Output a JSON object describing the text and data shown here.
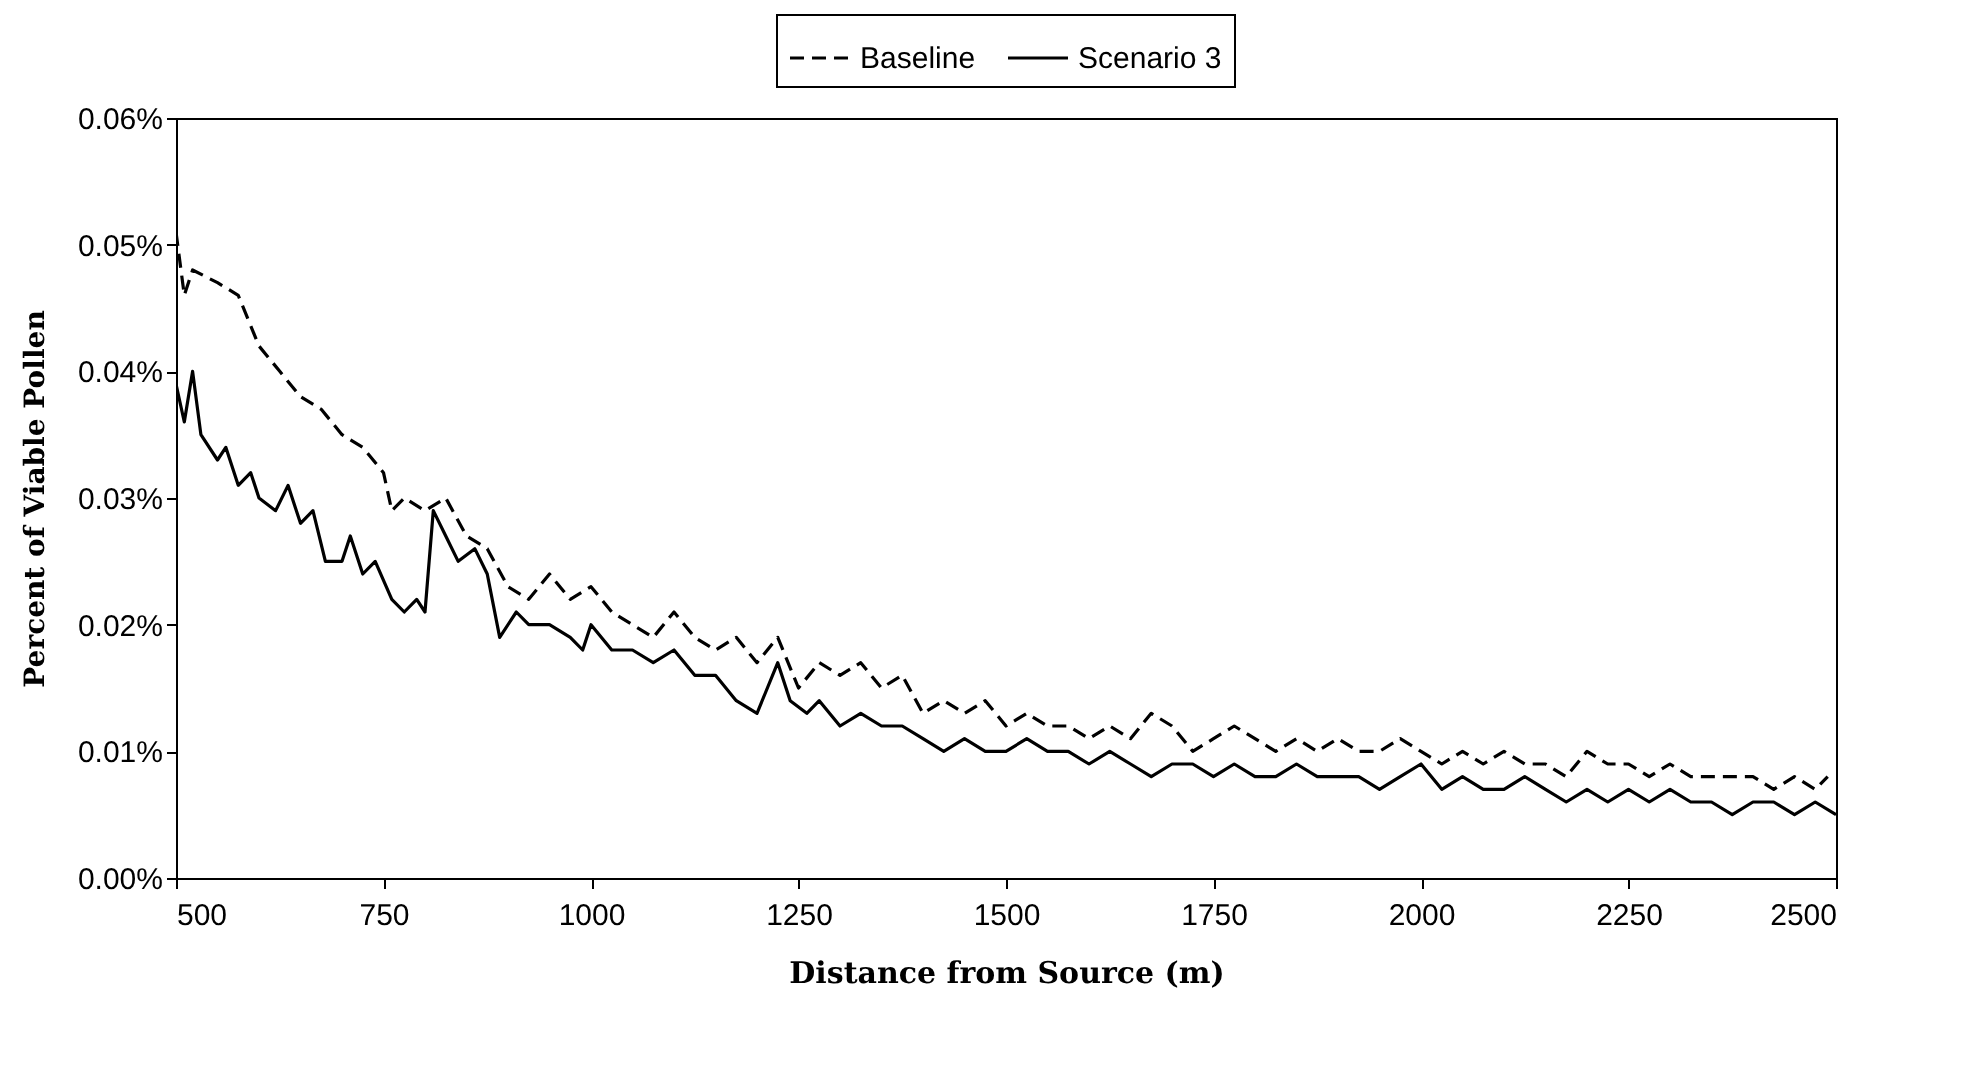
{
  "chart_data": {
    "type": "line",
    "xlabel": "Distance from Source (m)",
    "ylabel": "Percent of Viable Pollen",
    "xlim": [
      500,
      2500
    ],
    "xticks": [
      500,
      750,
      1000,
      1250,
      1500,
      1750,
      2000,
      2250,
      2500
    ],
    "ylim": [
      0,
      0.06
    ],
    "yticks": [
      {
        "value": 0,
        "label": "0.00%"
      },
      {
        "value": 0.01,
        "label": "0.01%"
      },
      {
        "value": 0.02,
        "label": "0.02%"
      },
      {
        "value": 0.03,
        "label": "0.03%"
      },
      {
        "value": 0.04,
        "label": "0.04%"
      },
      {
        "value": 0.05,
        "label": "0.05%"
      },
      {
        "value": 0.06,
        "label": "0.06%"
      }
    ],
    "grid": false,
    "legend": "top",
    "marker": "none",
    "series": [
      {
        "name": "Baseline",
        "color": "#000000",
        "line_style": "dashed",
        "x": [
          500,
          510,
          520,
          550,
          575,
          600,
          625,
          650,
          675,
          700,
          725,
          750,
          760,
          775,
          800,
          825,
          850,
          875,
          900,
          925,
          950,
          975,
          1000,
          1025,
          1050,
          1075,
          1100,
          1125,
          1150,
          1175,
          1200,
          1225,
          1250,
          1275,
          1300,
          1325,
          1350,
          1375,
          1400,
          1425,
          1450,
          1475,
          1500,
          1525,
          1550,
          1575,
          1600,
          1625,
          1650,
          1675,
          1700,
          1725,
          1750,
          1775,
          1800,
          1825,
          1850,
          1875,
          1900,
          1925,
          1950,
          1975,
          2000,
          2025,
          2050,
          2075,
          2100,
          2125,
          2150,
          2175,
          2200,
          2225,
          2250,
          2275,
          2300,
          2325,
          2350,
          2375,
          2400,
          2425,
          2450,
          2475,
          2490
        ],
        "values": [
          0.051,
          0.046,
          0.048,
          0.047,
          0.046,
          0.042,
          0.04,
          0.038,
          0.037,
          0.035,
          0.034,
          0.032,
          0.029,
          0.03,
          0.029,
          0.03,
          0.027,
          0.026,
          0.023,
          0.022,
          0.024,
          0.022,
          0.023,
          0.021,
          0.02,
          0.019,
          0.021,
          0.019,
          0.018,
          0.019,
          0.017,
          0.019,
          0.015,
          0.017,
          0.016,
          0.017,
          0.015,
          0.016,
          0.013,
          0.014,
          0.013,
          0.014,
          0.012,
          0.013,
          0.012,
          0.012,
          0.011,
          0.012,
          0.011,
          0.013,
          0.012,
          0.01,
          0.011,
          0.012,
          0.011,
          0.01,
          0.011,
          0.01,
          0.011,
          0.01,
          0.01,
          0.011,
          0.01,
          0.009,
          0.01,
          0.009,
          0.01,
          0.009,
          0.009,
          0.008,
          0.01,
          0.009,
          0.009,
          0.008,
          0.009,
          0.008,
          0.008,
          0.008,
          0.008,
          0.007,
          0.008,
          0.007,
          0.008
        ]
      },
      {
        "name": "Scenario 3",
        "color": "#000000",
        "line_style": "solid",
        "x": [
          500,
          510,
          520,
          530,
          550,
          560,
          575,
          590,
          600,
          620,
          635,
          650,
          665,
          680,
          700,
          710,
          725,
          740,
          760,
          775,
          790,
          800,
          810,
          825,
          840,
          860,
          875,
          890,
          910,
          925,
          950,
          975,
          990,
          1000,
          1025,
          1050,
          1075,
          1100,
          1125,
          1150,
          1175,
          1200,
          1225,
          1240,
          1260,
          1275,
          1300,
          1325,
          1350,
          1375,
          1400,
          1425,
          1450,
          1475,
          1500,
          1525,
          1550,
          1575,
          1600,
          1625,
          1650,
          1675,
          1700,
          1725,
          1750,
          1775,
          1800,
          1825,
          1850,
          1875,
          1900,
          1925,
          1950,
          1975,
          2000,
          2025,
          2050,
          2075,
          2100,
          2125,
          2150,
          2175,
          2200,
          2225,
          2250,
          2275,
          2300,
          2325,
          2350,
          2375,
          2400,
          2425,
          2450,
          2475,
          2500
        ],
        "values": [
          0.039,
          0.036,
          0.04,
          0.035,
          0.033,
          0.034,
          0.031,
          0.032,
          0.03,
          0.029,
          0.031,
          0.028,
          0.029,
          0.025,
          0.025,
          0.027,
          0.024,
          0.025,
          0.022,
          0.021,
          0.022,
          0.021,
          0.029,
          0.027,
          0.025,
          0.026,
          0.024,
          0.019,
          0.021,
          0.02,
          0.02,
          0.019,
          0.018,
          0.02,
          0.018,
          0.018,
          0.017,
          0.018,
          0.016,
          0.016,
          0.014,
          0.013,
          0.017,
          0.014,
          0.013,
          0.014,
          0.012,
          0.013,
          0.012,
          0.012,
          0.011,
          0.01,
          0.011,
          0.01,
          0.01,
          0.011,
          0.01,
          0.01,
          0.009,
          0.01,
          0.009,
          0.008,
          0.009,
          0.009,
          0.008,
          0.009,
          0.008,
          0.008,
          0.009,
          0.008,
          0.008,
          0.008,
          0.007,
          0.008,
          0.009,
          0.007,
          0.008,
          0.007,
          0.007,
          0.008,
          0.007,
          0.006,
          0.007,
          0.006,
          0.007,
          0.006,
          0.007,
          0.006,
          0.006,
          0.005,
          0.006,
          0.006,
          0.005,
          0.006,
          0.005
        ]
      }
    ]
  }
}
